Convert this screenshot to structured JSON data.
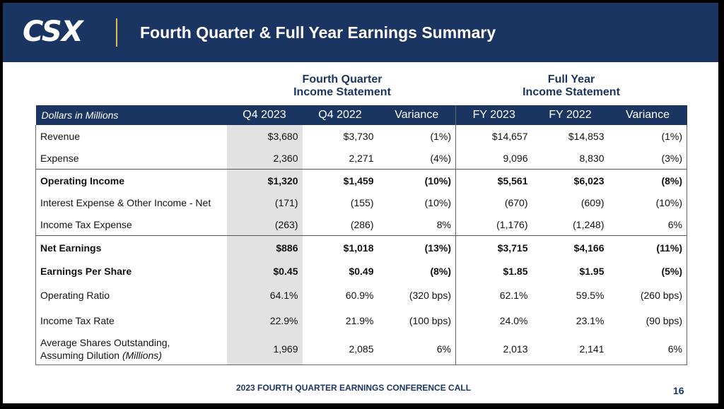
{
  "header": {
    "logo": "CSX",
    "title": "Fourth Quarter & Full Year Earnings Summary"
  },
  "groups": {
    "quarter": {
      "line1": "Fourth Quarter",
      "line2": "Income Statement"
    },
    "year": {
      "line1": "Full Year",
      "line2": "Income Statement"
    }
  },
  "table": {
    "columns": [
      "Dollars in Millions",
      "Q4 2023",
      "Q4 2022",
      "Variance",
      "FY 2023",
      "FY 2022",
      "Variance"
    ],
    "rows": [
      {
        "label": "Revenue",
        "cells": [
          "$3,680",
          "$3,730",
          "(1%)",
          "$14,657",
          "$14,853",
          "(1%)"
        ]
      },
      {
        "label": "Expense",
        "cells": [
          "2,360",
          "2,271",
          "(4%)",
          "9,096",
          "8,830",
          "(3%)"
        ]
      },
      {
        "label": "Operating Income",
        "cells": [
          "$1,320",
          "$1,459",
          "(10%)",
          "$5,561",
          "$6,023",
          "(8%)"
        ]
      },
      {
        "label": "Interest Expense & Other Income - Net",
        "cells": [
          "(171)",
          "(155)",
          "(10%)",
          "(670)",
          "(609)",
          "(10%)"
        ]
      },
      {
        "label": "Income Tax Expense",
        "cells": [
          "(263)",
          "(286)",
          "8%",
          "(1,176)",
          "(1,248)",
          "6%"
        ]
      },
      {
        "label": "Net Earnings",
        "cells": [
          "$886",
          "$1,018",
          "(13%)",
          "$3,715",
          "$4,166",
          "(11%)"
        ]
      },
      {
        "label": "Earnings Per Share",
        "cells": [
          "$0.45",
          "$0.49",
          "(8%)",
          "$1.85",
          "$1.95",
          "(5%)"
        ]
      },
      {
        "label": "Operating Ratio",
        "cells": [
          "64.1%",
          "60.9%",
          "(320 bps)",
          "62.1%",
          "59.5%",
          "(260 bps)"
        ]
      },
      {
        "label": "Income Tax Rate",
        "cells": [
          "22.9%",
          "21.9%",
          "(100 bps)",
          "24.0%",
          "23.1%",
          "(90 bps)"
        ]
      },
      {
        "label_line1": "Average Shares Outstanding,",
        "label_line2a": "Assuming Dilution ",
        "label_line2b": "(Millions)",
        "cells": [
          "1,969",
          "2,085",
          "6%",
          "2,013",
          "2,141",
          "6%"
        ]
      }
    ]
  },
  "footer": {
    "text": "2023 FOURTH QUARTER EARNINGS CONFERENCE CALL",
    "page": "16"
  },
  "colors": {
    "navy": "#1b3563",
    "highlight": "#e2e2e2",
    "accent": "#e6b84a"
  }
}
